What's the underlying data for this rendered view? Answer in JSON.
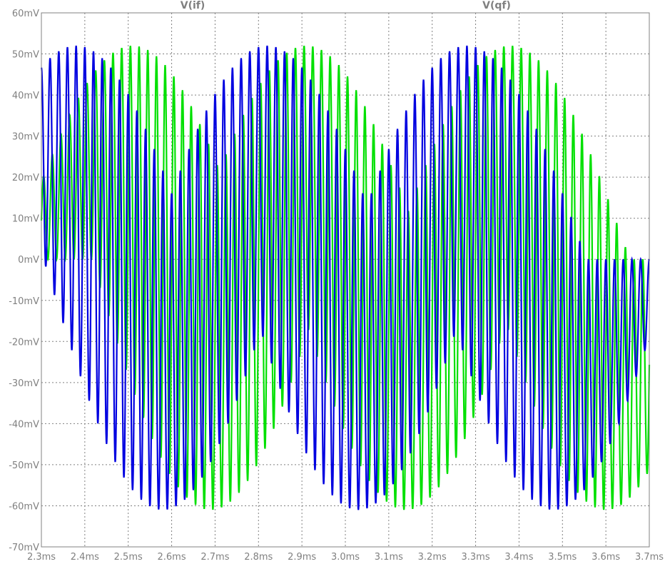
{
  "chart_data": {
    "type": "line",
    "title": "",
    "xlabel": "",
    "ylabel": "",
    "xlim": [
      2.3,
      3.7
    ],
    "ylim": [
      -70,
      60
    ],
    "x_unit": "ms",
    "y_unit": "mV",
    "grid": true,
    "legend_placement": "top",
    "x_tick_labels": [
      "2.3ms",
      "2.4ms",
      "2.5ms",
      "2.6ms",
      "2.7ms",
      "2.8ms",
      "2.9ms",
      "3.0ms",
      "3.1ms",
      "3.2ms",
      "3.3ms",
      "3.4ms",
      "3.5ms",
      "3.6ms",
      "3.7ms"
    ],
    "y_tick_labels": [
      "60mV",
      "50mV",
      "40mV",
      "30mV",
      "20mV",
      "10mV",
      "0mV",
      "-10mV",
      "-20mV",
      "-30mV",
      "-40mV",
      "-50mV",
      "-60mV",
      "-70mV"
    ],
    "series": [
      {
        "name": "V(if)",
        "color": "#00e000",
        "carrier_frequency_khz": 50,
        "envelope_period_ms": 0.55,
        "envelope_peaks": [
          {
            "x": 2.51,
            "y": [
              0,
              52
            ],
            "polarity": "positive"
          },
          {
            "x": 2.69,
            "y": [
              -61,
              0
            ],
            "polarity": "negative"
          },
          {
            "x": 2.91,
            "y": [
              0,
              52
            ],
            "polarity": "positive"
          },
          {
            "x": 3.14,
            "y": [
              -61,
              0
            ],
            "polarity": "negative"
          },
          {
            "x": 3.38,
            "y": [
              0,
              52
            ],
            "polarity": "positive"
          },
          {
            "x": 3.6,
            "y": [
              -61,
              0
            ],
            "polarity": "negative"
          }
        ]
      },
      {
        "name": "V(qf)",
        "color": "#0000e0",
        "carrier_frequency_khz": 50,
        "envelope_period_ms": 0.55,
        "envelope_peaks": [
          {
            "x": 2.38,
            "y": [
              0,
              52
            ],
            "polarity": "positive"
          },
          {
            "x": 2.58,
            "y": [
              -61,
              0
            ],
            "polarity": "negative"
          },
          {
            "x": 2.82,
            "y": [
              0,
              52
            ],
            "polarity": "positive"
          },
          {
            "x": 3.03,
            "y": [
              -61,
              0
            ],
            "polarity": "negative"
          },
          {
            "x": 3.28,
            "y": [
              0,
              52
            ],
            "polarity": "positive"
          },
          {
            "x": 3.48,
            "y": [
              -61,
              0
            ],
            "polarity": "negative"
          }
        ]
      }
    ]
  },
  "colors": {
    "background": "#ffffff",
    "frame": "#808080",
    "grid": "#808080",
    "tick_text": "#808080"
  }
}
